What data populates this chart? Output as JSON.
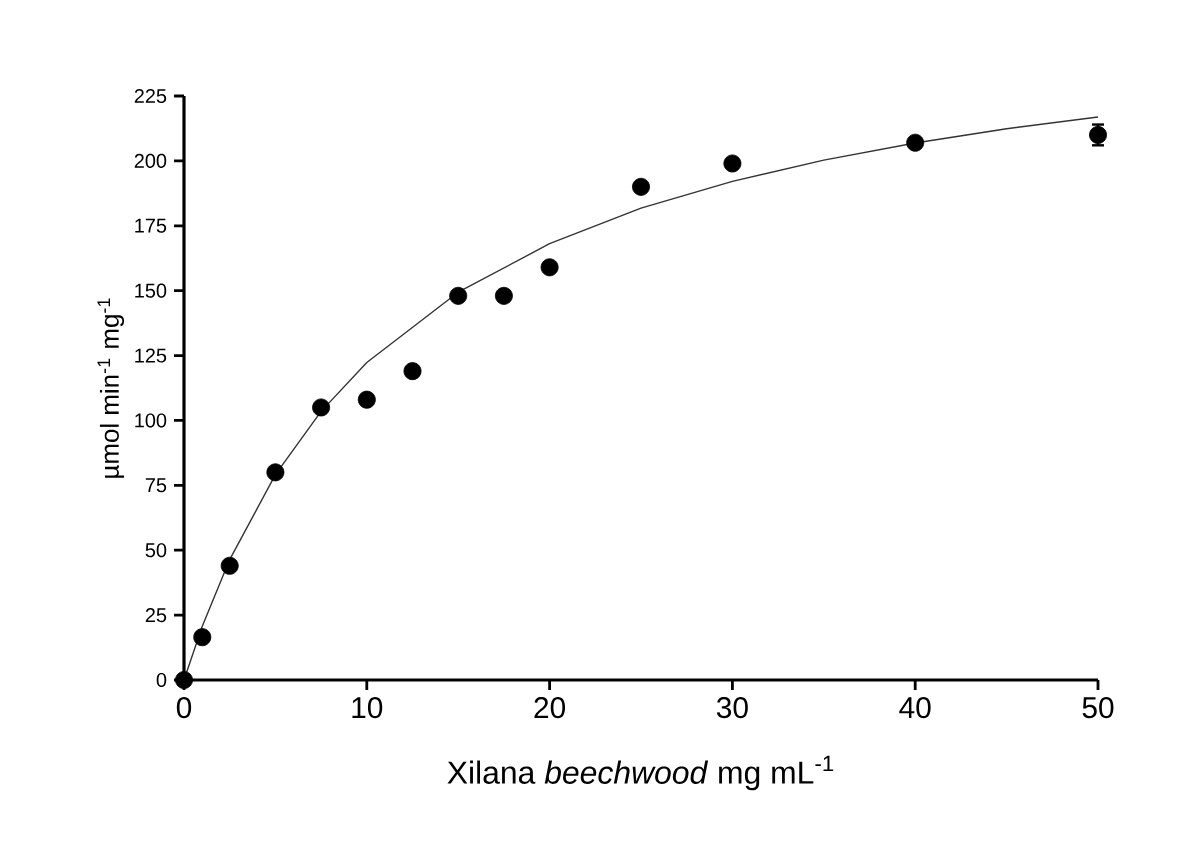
{
  "chart_data": {
    "type": "scatter",
    "xlabel": "Xilana *beechwood* mg mL$^{-1}$",
    "ylabel": "µmol min$^{-1}$ mg$^{-1}$",
    "xlim": [
      0,
      50
    ],
    "xticks": [
      0,
      10,
      20,
      30,
      40,
      50
    ],
    "ylim": [
      0,
      225
    ],
    "yticks": [
      0,
      25,
      50,
      75,
      100,
      125,
      150,
      175,
      200,
      225
    ],
    "series": [
      {
        "color": "#000000",
        "marker": "circle",
        "x": [
          0,
          1,
          2.5,
          5,
          7.5,
          10,
          12.5,
          15,
          17.5,
          20,
          25,
          30,
          40,
          50
        ],
        "values": [
          0,
          16.5,
          44,
          80,
          105,
          108,
          119,
          148,
          148,
          159,
          190,
          199,
          207,
          210
        ],
        "errors": [
          null,
          null,
          null,
          null,
          null,
          null,
          null,
          null,
          null,
          null,
          null,
          null,
          null,
          4
        ]
      },
      {
        "type": "line",
        "color": "#333333",
        "marker": "none",
        "line_style": "solid",
        "x": [
          0,
          1,
          2.5,
          5,
          7.5,
          10,
          15,
          20,
          25,
          30,
          35,
          40,
          45,
          50
        ],
        "values": [
          0,
          20.7,
          46.4,
          79.1,
          103.5,
          122.3,
          149.4,
          168.1,
          181.8,
          192.1,
          200.3,
          206.9,
          212.4,
          216.9
        ]
      }
    ]
  }
}
